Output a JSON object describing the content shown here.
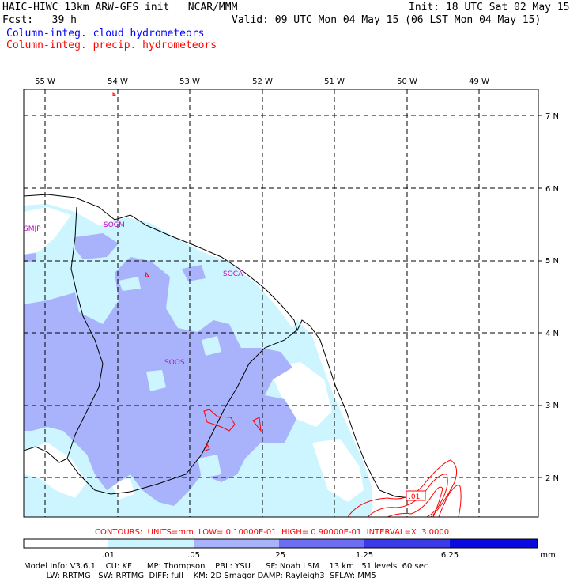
{
  "header": {
    "title_left": "HAIC-HIWC 13km ARW-GFS init   NCAR/MMM",
    "init": "Init: 18 UTC Sat 02 May 15",
    "fcst": "Fcst:   39 h",
    "valid": "Valid: 09 UTC Mon 04 May 15 (06 LST Mon 04 May 15)",
    "legend_cloud": "Column-integ. cloud hydrometeors",
    "legend_precip": "Column-integ. precip. hydrometeors"
  },
  "map": {
    "lon_labels": [
      "55 W",
      "54 W",
      "53 W",
      "52 W",
      "51 W",
      "50 W",
      "49 W"
    ],
    "lat_labels": [
      "7 N",
      "6 N",
      "5 N",
      "4 N",
      "3 N",
      "2 N"
    ],
    "stations": [
      "SMJP",
      "SOCM",
      "SOCA",
      "SOOS"
    ],
    "contour_label": ".01"
  },
  "contours_line": "CONTOURS:  UNITS=mm  LOW= 0.10000E-01  HIGH= 0.90000E-01  INTERVAL=X  3.0000",
  "colorbar": {
    "ticks": [
      ".01",
      ".05",
      ".25",
      "1.25",
      "6.25"
    ],
    "unit": "mm",
    "colors": [
      "#ffffff",
      "#ccf5ff",
      "#a8b3fb",
      "#6e6ef4",
      "#3a3ae6",
      "#0a0ae0"
    ]
  },
  "model_info": {
    "line1": "Model Info: V3.6.1    CU: KF      MP: Thompson    PBL: YSU      SF: Noah LSM    13 km   51 levels  60 sec",
    "line2": "         LW: RRTMG   SW: RRTMG  DIFF: full    KM: 2D Smagor DAMP: Rayleigh3  SFLAY: MM5"
  }
}
